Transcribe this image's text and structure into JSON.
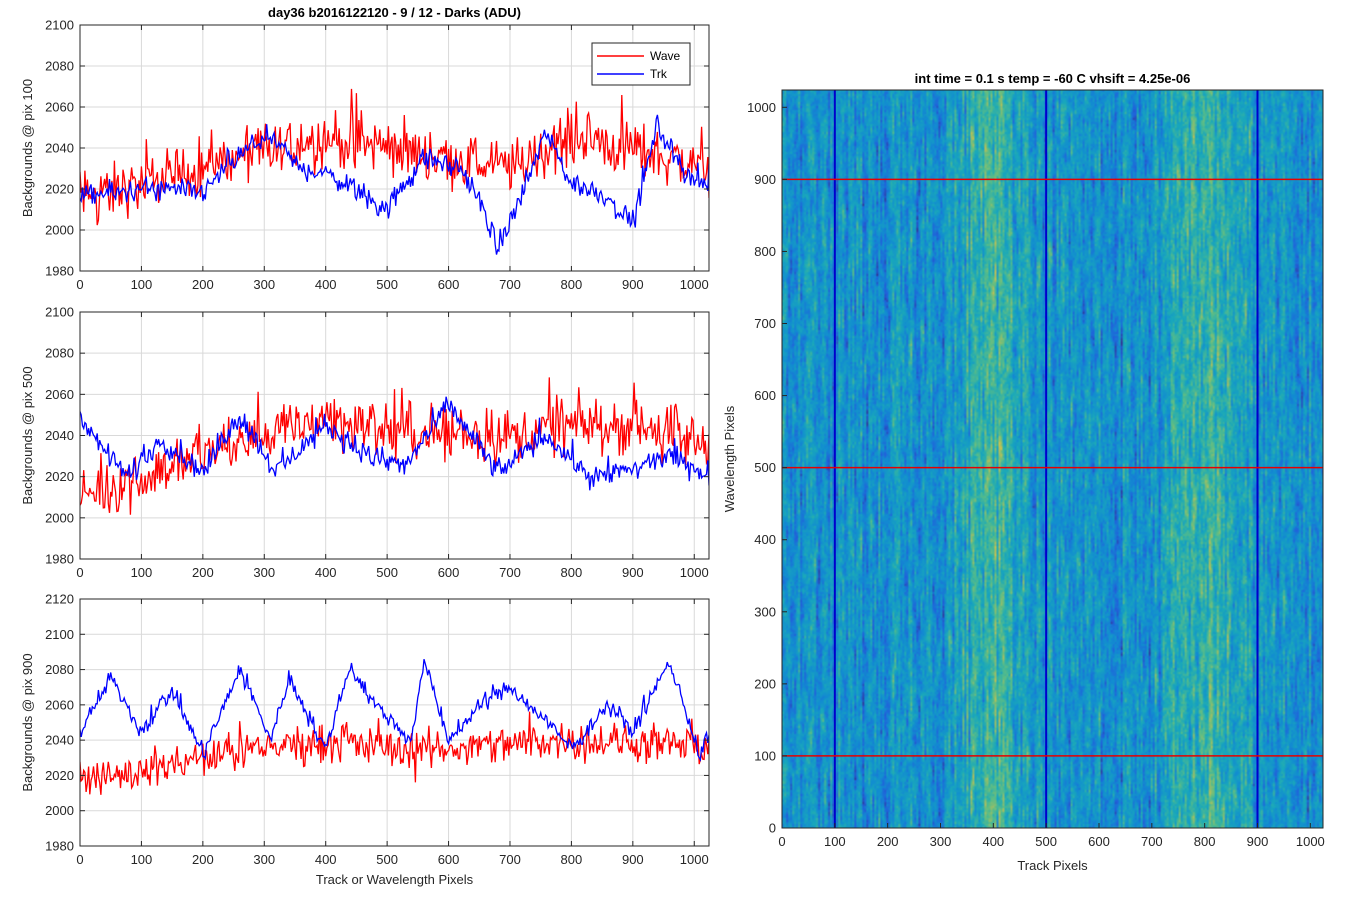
{
  "figure_title": "day36 b2016122120 - 9 / 12 - Darks (ADU)",
  "colors": {
    "wave": "#ff0000",
    "trk": "#0000ff",
    "grid": "#d9d9d9",
    "axis": "#262626"
  },
  "legend": {
    "placement": "top-right of first subplot",
    "entries": [
      "Wave",
      "Trk"
    ]
  },
  "chart_data": [
    {
      "type": "line",
      "title": "day36 b2016122120 - 9 / 12 - Darks (ADU)",
      "xlabel": "",
      "ylabel": "Backgrounds @ pix 100",
      "xlim": [
        0,
        1024
      ],
      "ylim": [
        1980,
        2100
      ],
      "xticks": [
        "0",
        "100",
        "200",
        "300",
        "400",
        "500",
        "600",
        "700",
        "800",
        "900",
        "1000"
      ],
      "yticks": [
        "1980",
        "2000",
        "2020",
        "2040",
        "2060",
        "2080",
        "2100"
      ],
      "grid": true,
      "series": [
        {
          "name": "Wave",
          "color": "#ff0000",
          "noise_amp": 20,
          "sample_step": 2,
          "x_knots": [
            0,
            100,
            200,
            300,
            400,
            500,
            600,
            700,
            800,
            900,
            1024
          ],
          "y_knots": [
            2015,
            2022,
            2030,
            2038,
            2045,
            2040,
            2035,
            2030,
            2045,
            2040,
            2030
          ]
        },
        {
          "name": "Trk",
          "color": "#0000ff",
          "noise_amp": 8,
          "sample_step": 2,
          "x_knots": [
            0,
            100,
            200,
            230,
            300,
            360,
            400,
            460,
            500,
            560,
            620,
            660,
            680,
            720,
            760,
            800,
            850,
            900,
            940,
            980,
            1024
          ],
          "y_knots": [
            2016,
            2020,
            2018,
            2028,
            2046,
            2030,
            2028,
            2018,
            2010,
            2035,
            2030,
            2008,
            1990,
            2018,
            2048,
            2022,
            2018,
            2003,
            2052,
            2030,
            2020
          ]
        }
      ]
    },
    {
      "type": "line",
      "title": "",
      "xlabel": "",
      "ylabel": "Backgrounds @ pix 500",
      "xlim": [
        0,
        1024
      ],
      "ylim": [
        1980,
        2100
      ],
      "xticks": [
        "0",
        "100",
        "200",
        "300",
        "400",
        "500",
        "600",
        "700",
        "800",
        "900",
        "1000"
      ],
      "yticks": [
        "1980",
        "2000",
        "2020",
        "2040",
        "2060",
        "2080",
        "2100"
      ],
      "grid": true,
      "series": [
        {
          "name": "Wave",
          "color": "#ff0000",
          "noise_amp": 20,
          "sample_step": 2,
          "x_knots": [
            0,
            100,
            200,
            300,
            400,
            500,
            600,
            700,
            800,
            900,
            1024
          ],
          "y_knots": [
            2010,
            2020,
            2032,
            2040,
            2048,
            2043,
            2040,
            2040,
            2045,
            2045,
            2035
          ]
        },
        {
          "name": "Trk",
          "color": "#0000ff",
          "noise_amp": 8,
          "sample_step": 2,
          "x_knots": [
            0,
            30,
            80,
            130,
            200,
            260,
            320,
            400,
            470,
            530,
            600,
            680,
            760,
            830,
            900,
            960,
            1024
          ],
          "y_knots": [
            2052,
            2035,
            2020,
            2038,
            2022,
            2050,
            2022,
            2045,
            2030,
            2025,
            2055,
            2022,
            2040,
            2020,
            2024,
            2030,
            2020
          ]
        }
      ]
    },
    {
      "type": "line",
      "title": "",
      "xlabel": "Track or Wavelength Pixels",
      "ylabel": "Backgrounds @ pix 900",
      "xlim": [
        0,
        1024
      ],
      "ylim": [
        1980,
        2120
      ],
      "xticks": [
        "0",
        "100",
        "200",
        "300",
        "400",
        "500",
        "600",
        "700",
        "800",
        "900",
        "1000"
      ],
      "yticks": [
        "1980",
        "2000",
        "2020",
        "2040",
        "2060",
        "2080",
        "2100",
        "2120"
      ],
      "grid": true,
      "series": [
        {
          "name": "Wave",
          "color": "#ff0000",
          "noise_amp": 16,
          "sample_step": 2,
          "x_knots": [
            0,
            100,
            200,
            300,
            400,
            500,
            600,
            700,
            800,
            900,
            1024
          ],
          "y_knots": [
            2018,
            2022,
            2030,
            2035,
            2040,
            2035,
            2035,
            2038,
            2040,
            2038,
            2035
          ]
        },
        {
          "name": "Trk",
          "color": "#0000ff",
          "noise_amp": 7,
          "sample_step": 2,
          "x_knots": [
            0,
            50,
            100,
            150,
            200,
            260,
            310,
            340,
            400,
            440,
            480,
            540,
            560,
            600,
            660,
            700,
            760,
            800,
            860,
            900,
            960,
            1010,
            1024
          ],
          "y_knots": [
            2045,
            2075,
            2045,
            2068,
            2032,
            2080,
            2040,
            2075,
            2035,
            2082,
            2060,
            2040,
            2085,
            2040,
            2062,
            2070,
            2050,
            2035,
            2060,
            2045,
            2085,
            2030,
            2045
          ]
        }
      ]
    },
    {
      "type": "heatmap",
      "title": "int time = 0.1 s   temp = -60 C   vhsift = 4.25e-06",
      "xlabel": "Track Pixels",
      "ylabel": "Wavelength Pixels",
      "xlim": [
        0,
        1024
      ],
      "ylim": [
        0,
        1024
      ],
      "xticks": [
        "0",
        "100",
        "200",
        "300",
        "400",
        "500",
        "600",
        "700",
        "800",
        "900",
        "1000"
      ],
      "yticks": [
        "0",
        "100",
        "200",
        "300",
        "400",
        "500",
        "600",
        "700",
        "800",
        "900",
        "1000"
      ],
      "colormap": "parula",
      "bright_columns": [
        400,
        800
      ],
      "marker_lines": {
        "vertical_x": [
          100,
          500,
          900
        ],
        "vertical_color": "#0000cc",
        "horizontal_y": [
          100,
          500,
          900
        ],
        "horizontal_color": "#e60000"
      }
    }
  ]
}
